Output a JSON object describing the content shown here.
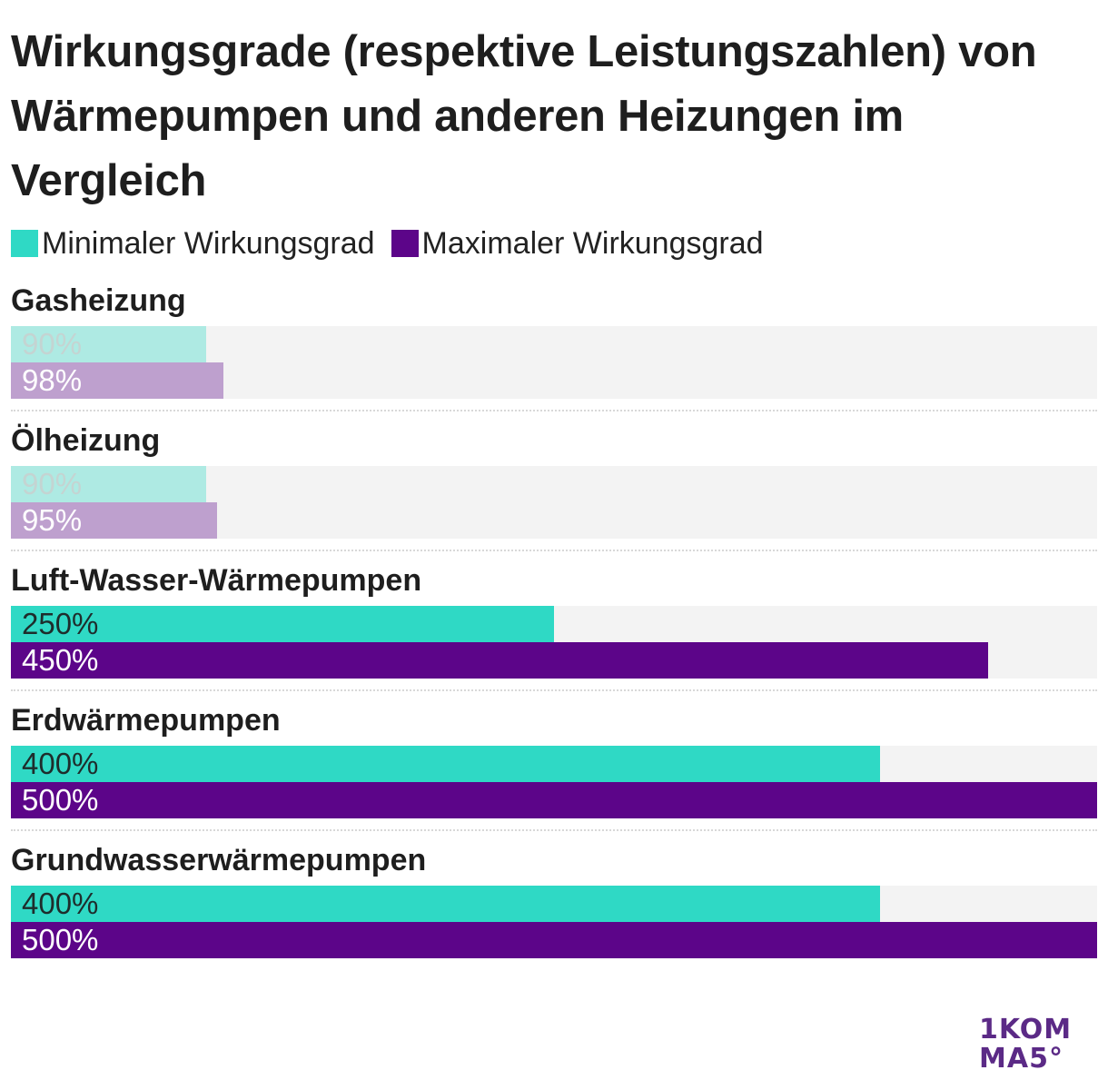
{
  "title": "Wirkungsgrade (respektive Leistungszahlen) von Wärmepumpen und anderen Heizungen im Vergleich",
  "colors": {
    "min": "#2fd9c5",
    "max": "#5c0589",
    "track": "#f3f3f3",
    "label_dark": "#1e2d2c",
    "label_light": "#ffffff"
  },
  "legend": [
    {
      "label": "Minimaler Wirkungsgrad",
      "color": "#2fd9c5"
    },
    {
      "label": "Maximaler Wirkungsgrad",
      "color": "#5c0589"
    }
  ],
  "logo": {
    "line1": "1KOM",
    "line2": "MA5°"
  },
  "chart_data": {
    "type": "bar",
    "orientation": "horizontal",
    "xlim": [
      0,
      500
    ],
    "unit": "%",
    "categories": [
      "Gasheizung",
      "Ölheizung",
      "Luft-Wasser-Wärmepumpen",
      "Erdwärmepumpen",
      "Grundwasserwärmepumpen"
    ],
    "series": [
      {
        "name": "Minimaler Wirkungsgrad",
        "values": [
          90,
          90,
          250,
          400,
          400
        ],
        "labels": [
          "90%",
          "90%",
          "250%",
          "400%",
          "400%"
        ]
      },
      {
        "name": "Maximaler Wirkungsgrad",
        "values": [
          98,
          95,
          450,
          500,
          500
        ],
        "labels": [
          "98%",
          "95%",
          "450%",
          "500%",
          "500%"
        ]
      }
    ],
    "dimmed_categories": [
      "Gasheizung",
      "Ölheizung"
    ],
    "legend_position": "top-left",
    "grid": false
  }
}
